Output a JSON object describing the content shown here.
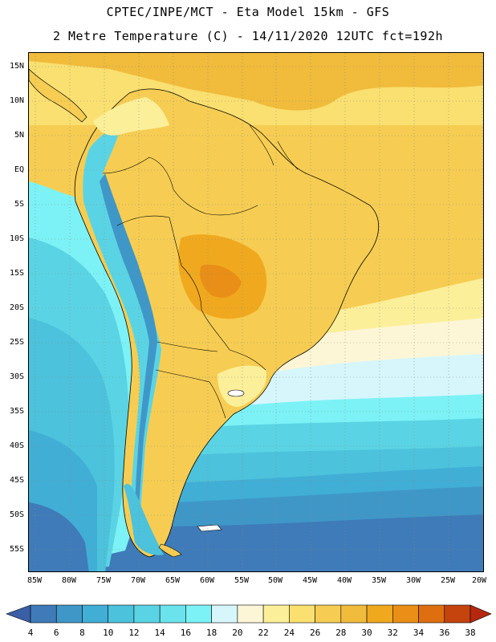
{
  "title": {
    "line1": "CPTEC/INPE/MCT -  Eta Model 15km - GFS",
    "line2": "2 Metre Temperature (C) - 14/11/2020 12UTC fct=192h"
  },
  "map": {
    "lat_labels": [
      "15N",
      "10N",
      "5N",
      "EQ",
      "5S",
      "10S",
      "15S",
      "20S",
      "25S",
      "30S",
      "35S",
      "40S",
      "45S",
      "50S",
      "55S"
    ],
    "lon_labels": [
      "85W",
      "80W",
      "75W",
      "70W",
      "65W",
      "60W",
      "55W",
      "50W",
      "45W",
      "40W",
      "35W",
      "30W",
      "25W",
      "20W"
    ],
    "grid": "dotted",
    "ocean_color": "#f6c64a",
    "land_color": "#f2c24e"
  },
  "colorbar": {
    "labels": [
      "4",
      "6",
      "8",
      "10",
      "12",
      "14",
      "16",
      "18",
      "20",
      "22",
      "24",
      "26",
      "28",
      "30",
      "32",
      "34",
      "36",
      "38"
    ],
    "colors": [
      "#3a5fa6",
      "#3e7bb8",
      "#3f97c8",
      "#41aed6",
      "#4cc2dc",
      "#5ad4e4",
      "#6be3ec",
      "#7cf2f6",
      "#d6f6fb",
      "#fdf6d6",
      "#fcef9a",
      "#f9e070",
      "#f6cd52",
      "#f1bb3c",
      "#f0a91e",
      "#e98e16",
      "#dd6f10",
      "#c5430d",
      "#b5280f"
    ]
  }
}
